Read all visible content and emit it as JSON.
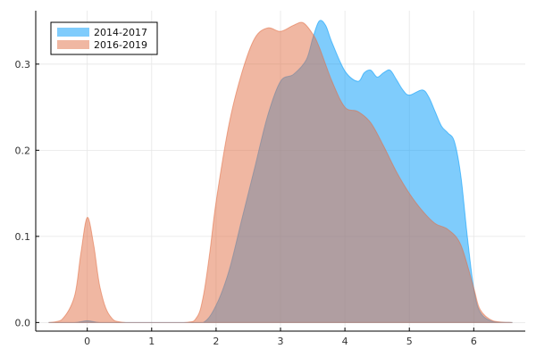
{
  "chart_data": {
    "type": "area",
    "xlim": [
      -0.8,
      6.8
    ],
    "ylim": [
      -0.01,
      0.362
    ],
    "x_ticks": [
      0,
      1,
      2,
      3,
      4,
      5,
      6
    ],
    "y_ticks": [
      0.0,
      0.1,
      0.2,
      0.3
    ],
    "x_tick_labels": [
      "0",
      "1",
      "2",
      "3",
      "4",
      "5",
      "6"
    ],
    "y_tick_labels": [
      "0.0",
      "0.1",
      "0.2",
      "0.3"
    ],
    "grid": true,
    "legend": "top-left",
    "series": [
      {
        "name": "2014-2017",
        "color": "#009af9",
        "points": [
          [
            -0.6,
            0.0
          ],
          [
            -0.2,
            0.0
          ],
          [
            0.0,
            0.002
          ],
          [
            0.2,
            0.0
          ],
          [
            0.6,
            0.0
          ],
          [
            1.5,
            0.0
          ],
          [
            1.8,
            0.0
          ],
          [
            2.0,
            0.02
          ],
          [
            2.2,
            0.06
          ],
          [
            2.4,
            0.12
          ],
          [
            2.6,
            0.18
          ],
          [
            2.8,
            0.24
          ],
          [
            3.0,
            0.28
          ],
          [
            3.2,
            0.288
          ],
          [
            3.4,
            0.305
          ],
          [
            3.5,
            0.33
          ],
          [
            3.6,
            0.35
          ],
          [
            3.7,
            0.345
          ],
          [
            3.8,
            0.325
          ],
          [
            4.0,
            0.292
          ],
          [
            4.2,
            0.28
          ],
          [
            4.3,
            0.29
          ],
          [
            4.4,
            0.293
          ],
          [
            4.5,
            0.285
          ],
          [
            4.6,
            0.29
          ],
          [
            4.7,
            0.293
          ],
          [
            4.8,
            0.282
          ],
          [
            4.9,
            0.27
          ],
          [
            5.0,
            0.264
          ],
          [
            5.2,
            0.27
          ],
          [
            5.3,
            0.262
          ],
          [
            5.4,
            0.245
          ],
          [
            5.5,
            0.228
          ],
          [
            5.6,
            0.22
          ],
          [
            5.7,
            0.21
          ],
          [
            5.8,
            0.17
          ],
          [
            5.9,
            0.1
          ],
          [
            6.0,
            0.04
          ],
          [
            6.1,
            0.012
          ],
          [
            6.3,
            0.001
          ],
          [
            6.6,
            0.0
          ]
        ]
      },
      {
        "name": "2016-2019",
        "color": "#e26f46",
        "points": [
          [
            -0.6,
            0.0
          ],
          [
            -0.4,
            0.003
          ],
          [
            -0.2,
            0.03
          ],
          [
            -0.1,
            0.08
          ],
          [
            0.0,
            0.122
          ],
          [
            0.1,
            0.09
          ],
          [
            0.2,
            0.04
          ],
          [
            0.35,
            0.008
          ],
          [
            0.6,
            0.0
          ],
          [
            1.5,
            0.0
          ],
          [
            1.7,
            0.006
          ],
          [
            1.8,
            0.03
          ],
          [
            1.9,
            0.08
          ],
          [
            2.0,
            0.14
          ],
          [
            2.2,
            0.23
          ],
          [
            2.4,
            0.29
          ],
          [
            2.6,
            0.33
          ],
          [
            2.8,
            0.342
          ],
          [
            3.0,
            0.338
          ],
          [
            3.2,
            0.345
          ],
          [
            3.35,
            0.348
          ],
          [
            3.5,
            0.335
          ],
          [
            3.6,
            0.32
          ],
          [
            3.8,
            0.28
          ],
          [
            4.0,
            0.25
          ],
          [
            4.2,
            0.245
          ],
          [
            4.4,
            0.232
          ],
          [
            4.6,
            0.205
          ],
          [
            4.8,
            0.175
          ],
          [
            5.0,
            0.15
          ],
          [
            5.2,
            0.13
          ],
          [
            5.4,
            0.115
          ],
          [
            5.6,
            0.108
          ],
          [
            5.8,
            0.09
          ],
          [
            6.0,
            0.04
          ],
          [
            6.1,
            0.015
          ],
          [
            6.3,
            0.002
          ],
          [
            6.6,
            0.0
          ]
        ]
      }
    ]
  }
}
